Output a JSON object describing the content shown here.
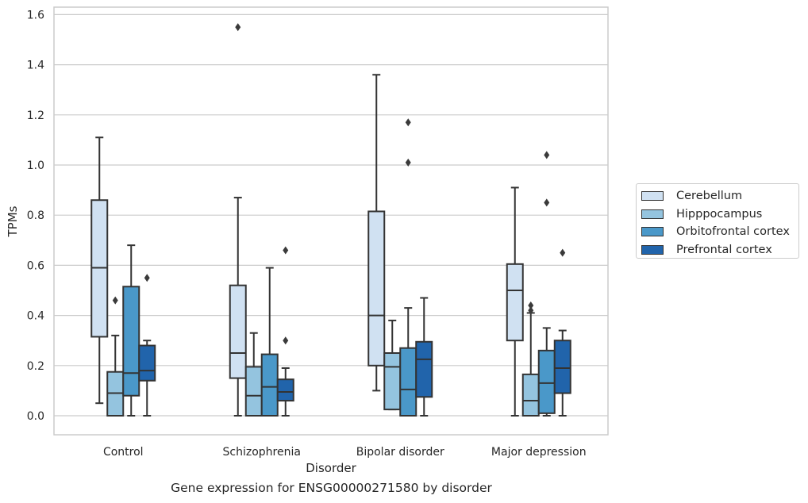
{
  "chart_data": {
    "type": "box",
    "title": "",
    "caption": "Gene expression for ENSG00000271580 by disorder",
    "xlabel": "Disorder",
    "ylabel": "TPMs",
    "ylim": [
      -0.075,
      1.63
    ],
    "yticks": [
      "0.0",
      "0.2",
      "0.4",
      "0.6",
      "0.8",
      "1.0",
      "1.2",
      "1.4",
      "1.6"
    ],
    "grid": true,
    "legend_position": "right",
    "categories": [
      "Control",
      "Schizophrenia",
      "Bipolar disorder",
      "Major depression"
    ],
    "series": [
      {
        "name": "Cerebellum",
        "color": "#d0e1f2",
        "boxes": [
          {
            "whislo": 0.05,
            "q1": 0.315,
            "median": 0.59,
            "q3": 0.86,
            "whishi": 1.11,
            "fliers": []
          },
          {
            "whislo": 0.0,
            "q1": 0.15,
            "median": 0.25,
            "q3": 0.52,
            "whishi": 0.87,
            "fliers": [
              1.55
            ]
          },
          {
            "whislo": 0.1,
            "q1": 0.2,
            "median": 0.4,
            "q3": 0.815,
            "whishi": 1.36,
            "fliers": []
          },
          {
            "whislo": 0.0,
            "q1": 0.3,
            "median": 0.5,
            "q3": 0.605,
            "whishi": 0.91,
            "fliers": []
          }
        ]
      },
      {
        "name": "Hipppocampus",
        "color": "#94c4df",
        "boxes": [
          {
            "whislo": 0.0,
            "q1": 0.0,
            "median": 0.09,
            "q3": 0.175,
            "whishi": 0.32,
            "fliers": [
              0.46
            ]
          },
          {
            "whislo": 0.0,
            "q1": 0.0,
            "median": 0.08,
            "q3": 0.195,
            "whishi": 0.33,
            "fliers": []
          },
          {
            "whislo": 0.025,
            "q1": 0.025,
            "median": 0.195,
            "q3": 0.25,
            "whishi": 0.38,
            "fliers": []
          },
          {
            "whislo": 0.0,
            "q1": 0.0,
            "median": 0.06,
            "q3": 0.165,
            "whishi": 0.41,
            "fliers": [
              0.42,
              0.44
            ]
          }
        ]
      },
      {
        "name": "Orbitofrontal cortex",
        "color": "#4a98c9",
        "boxes": [
          {
            "whislo": 0.0,
            "q1": 0.08,
            "median": 0.17,
            "q3": 0.515,
            "whishi": 0.68,
            "fliers": []
          },
          {
            "whislo": 0.0,
            "q1": 0.0,
            "median": 0.115,
            "q3": 0.245,
            "whishi": 0.59,
            "fliers": []
          },
          {
            "whislo": 0.0,
            "q1": 0.0,
            "median": 0.105,
            "q3": 0.27,
            "whishi": 0.43,
            "fliers": [
              1.01,
              1.17
            ]
          },
          {
            "whislo": 0.0,
            "q1": 0.01,
            "median": 0.13,
            "q3": 0.26,
            "whishi": 0.35,
            "fliers": [
              0.85,
              1.04
            ]
          }
        ]
      },
      {
        "name": "Prefrontal cortex",
        "color": "#2164ab",
        "boxes": [
          {
            "whislo": 0.0,
            "q1": 0.14,
            "median": 0.18,
            "q3": 0.28,
            "whishi": 0.3,
            "fliers": [
              0.55
            ]
          },
          {
            "whislo": 0.0,
            "q1": 0.06,
            "median": 0.095,
            "q3": 0.145,
            "whishi": 0.19,
            "fliers": [
              0.3,
              0.66
            ]
          },
          {
            "whislo": 0.0,
            "q1": 0.075,
            "median": 0.225,
            "q3": 0.295,
            "whishi": 0.47,
            "fliers": []
          },
          {
            "whislo": 0.0,
            "q1": 0.09,
            "median": 0.19,
            "q3": 0.3,
            "whishi": 0.34,
            "fliers": [
              0.65
            ]
          }
        ]
      }
    ]
  }
}
